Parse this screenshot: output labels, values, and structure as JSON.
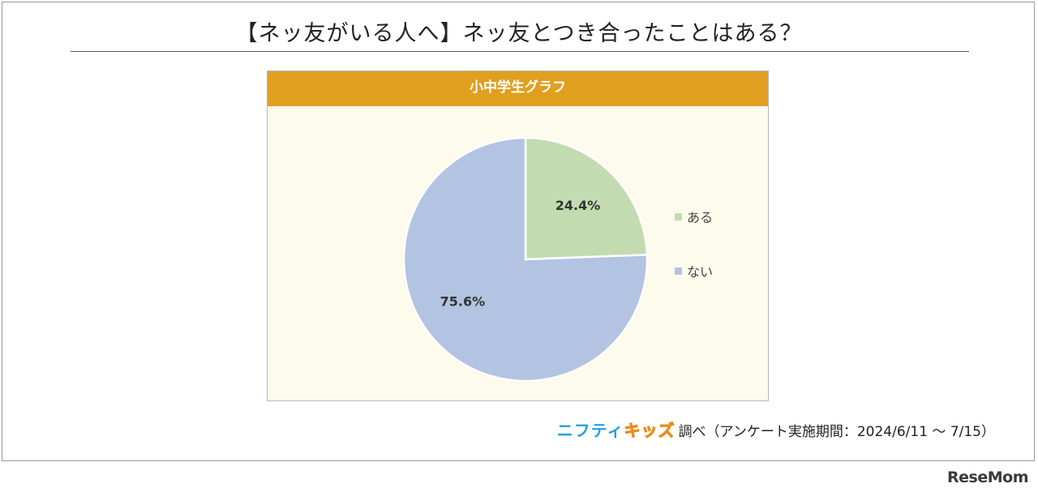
{
  "title": "【ネッ友がいる人へ】ネッ友とつき合ったことはある？",
  "chart_header": "小中学生グラフ",
  "colors": {
    "header_bg": "#e09f1f",
    "plot_bg": "#fdfbec",
    "aru": "#c3dbb0",
    "nai": "#b3c3e2"
  },
  "chart_data": {
    "type": "pie",
    "title": "小中学生グラフ",
    "categories": [
      "ある",
      "ない"
    ],
    "values": [
      24.4,
      75.6
    ],
    "value_labels": [
      "24.4%",
      "75.6%"
    ],
    "legend": "right"
  },
  "credit": {
    "logo_part1": "ニフティ",
    "logo_part2": "キッズ",
    "text": "調べ（アンケート実施期間：2024/6/11 ～ 7/15）"
  },
  "watermark": "ReseMom"
}
